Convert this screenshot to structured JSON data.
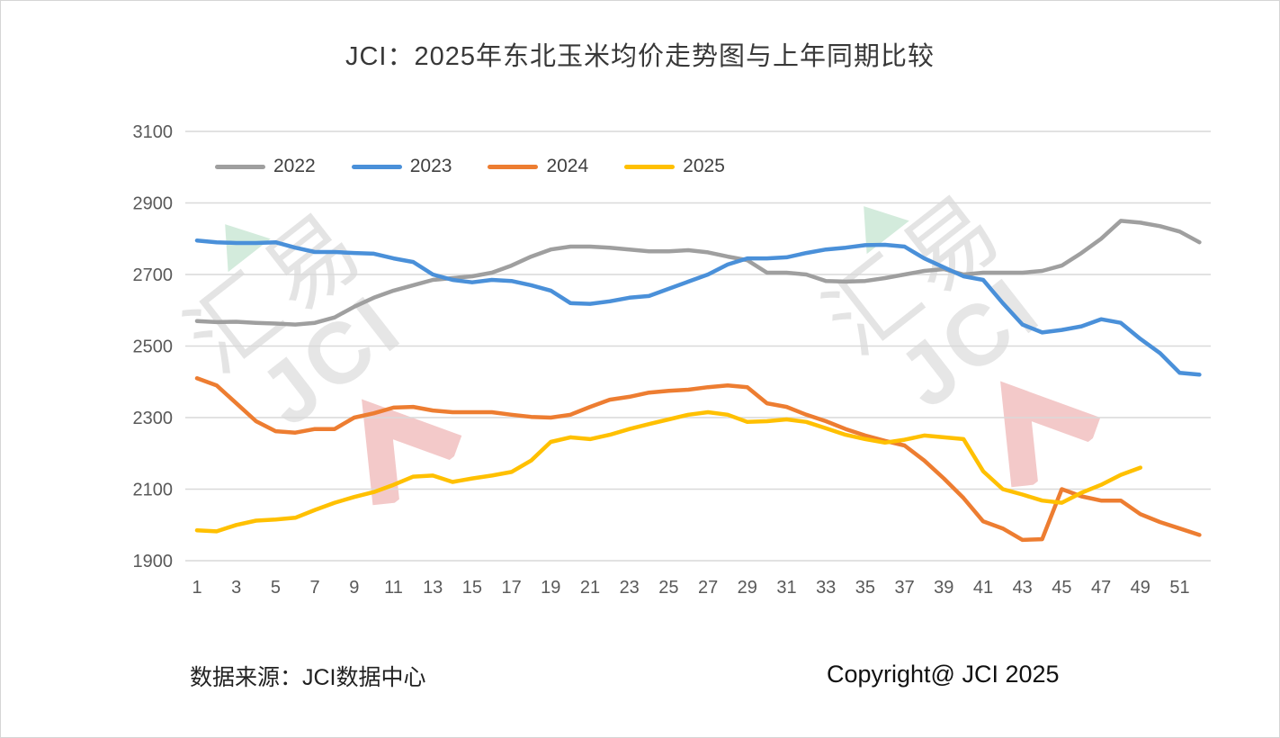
{
  "page": {
    "title": "JCI：2025年东北玉米均价走势图与上年同期比较",
    "source_note": "数据来源：JCI数据中心",
    "copyright": "Copyright@ JCI 2025",
    "watermark_cn": "汇易",
    "watermark_en": "JCI"
  },
  "chart_data": {
    "type": "line",
    "title": "JCI：2025年东北玉米均价走势图与上年同期比较",
    "xlabel": "",
    "ylabel": "",
    "x_unit": "week",
    "x_range": [
      1,
      52
    ],
    "x_tick_labels": [
      "1",
      "3",
      "5",
      "7",
      "9",
      "11",
      "13",
      "15",
      "17",
      "19",
      "21",
      "23",
      "25",
      "27",
      "29",
      "31",
      "33",
      "35",
      "37",
      "39",
      "41",
      "43",
      "45",
      "47",
      "49",
      "51"
    ],
    "ylim": [
      1900,
      3100
    ],
    "y_ticks": [
      1900,
      2100,
      2300,
      2500,
      2700,
      2900,
      3100
    ],
    "grid": true,
    "legend_position": "top-left",
    "grid_color": "#d9d9d9",
    "tick_color": "#595959",
    "series": [
      {
        "name": "2022",
        "color": "#9f9f9f",
        "values": [
          2570,
          2567,
          2568,
          2565,
          2563,
          2560,
          2565,
          2580,
          2610,
          2635,
          2655,
          2670,
          2685,
          2690,
          2695,
          2705,
          2725,
          2750,
          2770,
          2778,
          2778,
          2775,
          2770,
          2765,
          2765,
          2768,
          2762,
          2750,
          2740,
          2705,
          2705,
          2700,
          2682,
          2680,
          2682,
          2690,
          2700,
          2710,
          2715,
          2700,
          2705,
          2705,
          2705,
          2710,
          2725,
          2760,
          2800,
          2850,
          2845,
          2835,
          2820,
          2790
        ]
      },
      {
        "name": "2023",
        "color": "#4a90d9",
        "values": [
          2795,
          2790,
          2788,
          2788,
          2790,
          2775,
          2763,
          2763,
          2760,
          2758,
          2745,
          2735,
          2700,
          2685,
          2678,
          2685,
          2682,
          2670,
          2655,
          2620,
          2618,
          2625,
          2635,
          2640,
          2660,
          2680,
          2700,
          2728,
          2745,
          2745,
          2748,
          2760,
          2770,
          2775,
          2782,
          2783,
          2778,
          2745,
          2720,
          2695,
          2685,
          2620,
          2560,
          2538,
          2545,
          2555,
          2575,
          2565,
          2520,
          2480,
          2425,
          2420
        ]
      },
      {
        "name": "2024",
        "color": "#ed7d31",
        "values": [
          2410,
          2390,
          2340,
          2290,
          2262,
          2258,
          2268,
          2268,
          2300,
          2312,
          2328,
          2330,
          2320,
          2315,
          2315,
          2315,
          2308,
          2302,
          2300,
          2308,
          2330,
          2350,
          2358,
          2370,
          2375,
          2378,
          2385,
          2390,
          2385,
          2340,
          2330,
          2308,
          2290,
          2268,
          2250,
          2235,
          2222,
          2180,
          2130,
          2075,
          2010,
          1990,
          1958,
          1960,
          2100,
          2080,
          2068,
          2068,
          2030,
          2008,
          1990,
          1972
        ]
      },
      {
        "name": "2025",
        "color": "#ffc000",
        "values": [
          1985,
          1982,
          2000,
          2012,
          2015,
          2020,
          2042,
          2062,
          2078,
          2092,
          2112,
          2135,
          2138,
          2120,
          2130,
          2138,
          2148,
          2180,
          2232,
          2245,
          2240,
          2252,
          2268,
          2282,
          2295,
          2308,
          2315,
          2308,
          2288,
          2290,
          2295,
          2288,
          2270,
          2252,
          2240,
          2230,
          2238,
          2250,
          2245,
          2240,
          2150,
          2100,
          2085,
          2068,
          2062,
          2090,
          2112,
          2140,
          2160
        ]
      }
    ]
  }
}
